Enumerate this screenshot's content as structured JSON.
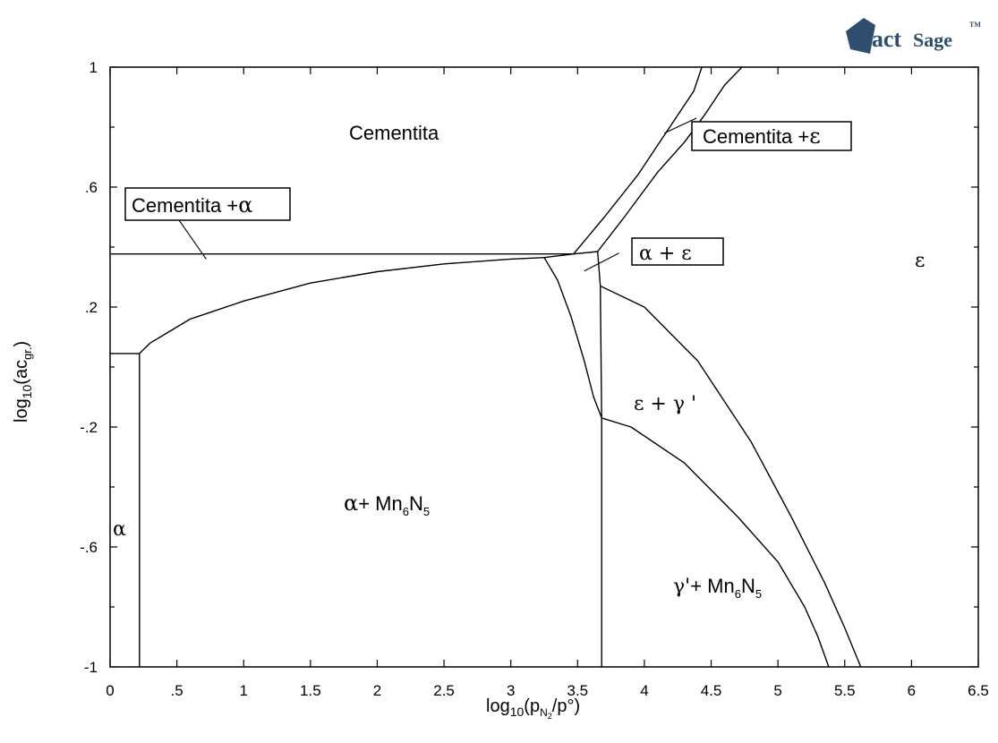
{
  "logo": {
    "text_a": "Fact",
    "text_b": "Sage",
    "tm": "TM"
  },
  "chart_data": {
    "type": "phase-diagram",
    "xlabel_prefix": "log",
    "xlabel_sub": "10",
    "xlabel_paren_open": "(p",
    "xlabel_sub_n": "N",
    "xlabel_sub_2": "2",
    "xlabel_rest": "/p°)",
    "ylabel_prefix": "log",
    "ylabel_sub": "10",
    "ylabel_paren_open": "(ac",
    "ylabel_sub_gr": "gr.",
    "ylabel_rest": ")",
    "xlim": [
      0,
      6.5
    ],
    "ylim": [
      -1,
      1
    ],
    "x_ticks": [
      {
        "v": 0,
        "label": "0"
      },
      {
        "v": 0.5,
        "label": ".5"
      },
      {
        "v": 1,
        "label": "1"
      },
      {
        "v": 1.5,
        "label": "1.5"
      },
      {
        "v": 2,
        "label": "2"
      },
      {
        "v": 2.5,
        "label": "2.5"
      },
      {
        "v": 3,
        "label": "3"
      },
      {
        "v": 3.5,
        "label": "3.5"
      },
      {
        "v": 4,
        "label": "4"
      },
      {
        "v": 4.5,
        "label": "4.5"
      },
      {
        "v": 5,
        "label": "5"
      },
      {
        "v": 5.5,
        "label": "5.5"
      },
      {
        "v": 6,
        "label": "6"
      },
      {
        "v": 6.5,
        "label": "6.5"
      }
    ],
    "y_ticks": [
      {
        "v": 1,
        "label": "1"
      },
      {
        "v": 0.6,
        "label": ".6"
      },
      {
        "v": 0.2,
        "label": ".2"
      },
      {
        "v": -0.2,
        "label": "-.2"
      },
      {
        "v": -0.6,
        "label": "-.6"
      },
      {
        "v": -1,
        "label": "-1"
      }
    ],
    "boundaries": [
      {
        "name": "cementite-alpha-horizontal",
        "points": [
          [
            0,
            0.377
          ],
          [
            3.47,
            0.377
          ]
        ]
      },
      {
        "name": "alpha-lower-left-horizontal",
        "points": [
          [
            0,
            0.045
          ],
          [
            0.22,
            0.045
          ]
        ]
      },
      {
        "name": "alpha-left-vertical",
        "points": [
          [
            0.22,
            0.045
          ],
          [
            0.22,
            -1
          ]
        ]
      },
      {
        "name": "alpha-upper-curve",
        "points": [
          [
            0.22,
            0.045
          ],
          [
            0.3,
            0.08
          ],
          [
            0.6,
            0.16
          ],
          [
            1,
            0.22
          ],
          [
            1.5,
            0.28
          ],
          [
            2,
            0.318
          ],
          [
            2.5,
            0.344
          ],
          [
            3,
            0.36
          ],
          [
            3.25,
            0.365
          ]
        ]
      },
      {
        "name": "alpha-eps-triangle-top",
        "points": [
          [
            3.25,
            0.365
          ],
          [
            3.47,
            0.377
          ],
          [
            3.65,
            0.385
          ]
        ]
      },
      {
        "name": "alpha-eps-left-edge",
        "points": [
          [
            3.25,
            0.365
          ],
          [
            3.35,
            0.29
          ],
          [
            3.45,
            0.17
          ],
          [
            3.55,
            0.02
          ],
          [
            3.62,
            -0.1
          ],
          [
            3.68,
            -0.17
          ]
        ]
      },
      {
        "name": "alpha-eps-right-vertical",
        "points": [
          [
            3.65,
            0.385
          ],
          [
            3.67,
            0.27
          ],
          [
            3.68,
            -0.17
          ]
        ]
      },
      {
        "name": "gprime-mn6n5-vertical",
        "points": [
          [
            3.68,
            -0.17
          ],
          [
            3.68,
            -1
          ]
        ]
      },
      {
        "name": "cementite-eps-left",
        "points": [
          [
            3.47,
            0.377
          ],
          [
            3.7,
            0.5
          ],
          [
            3.95,
            0.64
          ],
          [
            4.1,
            0.74
          ],
          [
            4.25,
            0.84
          ],
          [
            4.37,
            0.92
          ],
          [
            4.43,
            1.0
          ]
        ]
      },
      {
        "name": "cementite-eps-right",
        "points": [
          [
            3.65,
            0.385
          ],
          [
            3.85,
            0.5
          ],
          [
            4.1,
            0.65
          ],
          [
            4.3,
            0.75
          ],
          [
            4.45,
            0.84
          ],
          [
            4.6,
            0.94
          ],
          [
            4.73,
            1.0
          ]
        ]
      },
      {
        "name": "eps-gprime-upper-curve",
        "points": [
          [
            3.67,
            0.27
          ],
          [
            4,
            0.2
          ],
          [
            4.4,
            0.02
          ],
          [
            4.8,
            -0.25
          ],
          [
            5.1,
            -0.5
          ],
          [
            5.35,
            -0.72
          ],
          [
            5.5,
            -0.87
          ],
          [
            5.62,
            -1
          ]
        ]
      },
      {
        "name": "eps-gprime-lower-curve",
        "points": [
          [
            3.68,
            -0.17
          ],
          [
            3.9,
            -0.2
          ],
          [
            4.3,
            -0.32
          ],
          [
            4.7,
            -0.5
          ],
          [
            5.0,
            -0.65
          ],
          [
            5.2,
            -0.8
          ],
          [
            5.3,
            -0.9
          ],
          [
            5.38,
            -1
          ]
        ]
      }
    ],
    "leaders": [
      {
        "name": "cementita-alpha-leader",
        "points": [
          [
            0.5,
            0.5
          ],
          [
            0.72,
            0.36
          ]
        ]
      },
      {
        "name": "alpha-eps-leader",
        "points": [
          [
            3.81,
            0.38
          ],
          [
            3.55,
            0.32
          ]
        ]
      },
      {
        "name": "cementita-eps-leader",
        "points": [
          [
            4.39,
            0.83
          ],
          [
            4.15,
            0.78
          ]
        ]
      }
    ],
    "labels": {
      "cementita": "Cementita",
      "cementita_alpha_text": "Cementita +",
      "cementita_alpha_greek": "α",
      "cementita_eps_text": "Cementita +",
      "cementita_eps_greek": "ε",
      "alpha_eps_a": "α",
      "alpha_eps_plus": " + ",
      "alpha_eps_e": "ε",
      "eps": "ε",
      "eps_gprime_e": "ε",
      "eps_gprime_plus": " + ",
      "eps_gprime_g": "γ '",
      "alpha": "α",
      "alpha_mn_a": "α",
      "alpha_mn_plus": "+ Mn",
      "mn_sub_6": "6",
      "n_text": "N",
      "n_sub_5": "5",
      "gprime_mn_g": "γ'",
      "gprime_mn_plus": "+ Mn"
    },
    "grid": false,
    "legend": "none"
  }
}
